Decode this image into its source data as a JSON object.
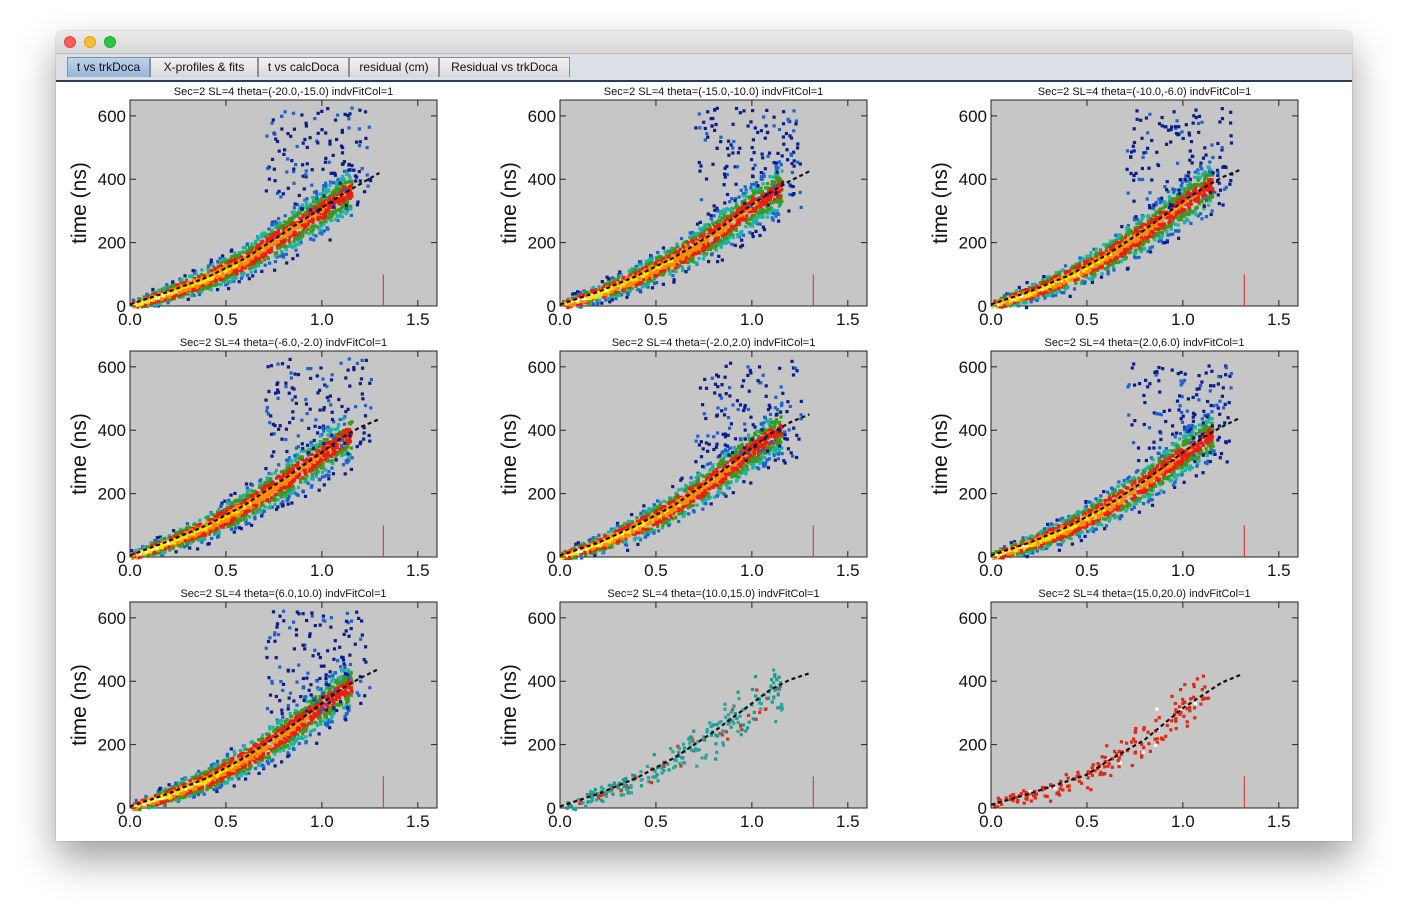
{
  "window": {
    "tabs": [
      {
        "label": "t vs trkDoca",
        "active": true
      },
      {
        "label": "X-profiles & fits",
        "active": false
      },
      {
        "label": "t vs calcDoca",
        "active": false
      },
      {
        "label": "residual (cm)",
        "active": false
      },
      {
        "label": "Residual vs trkDoca",
        "active": false
      }
    ]
  },
  "colors": {
    "plot_bg": "#c6c6c6",
    "fit_line": "#111111",
    "marker": "#e0281c"
  },
  "chart_data": [
    {
      "type": "heatmap",
      "title": "Sec=2 SL=4 theta=(-20.0,-15.0) indvFitCol=1",
      "ylabel": "time (ns)",
      "xlabel": "",
      "xlim": [
        0,
        1.6
      ],
      "ylim": [
        0,
        650
      ],
      "xticks": [
        "0.0",
        "0.5",
        "1.0",
        "1.5"
      ],
      "yticks": [
        "0",
        "200",
        "400",
        "600"
      ],
      "palette": "rainbow",
      "fit_curve": [
        [
          0,
          5
        ],
        [
          0.2,
          45
        ],
        [
          0.4,
          90
        ],
        [
          0.6,
          150
        ],
        [
          0.8,
          230
        ],
        [
          1.0,
          310
        ],
        [
          1.1,
          350
        ],
        [
          1.2,
          385
        ],
        [
          1.3,
          420
        ]
      ],
      "marker_x": 1.32
    },
    {
      "type": "heatmap",
      "title": "Sec=2 SL=4 theta=(-15.0,-10.0) indvFitCol=1",
      "ylabel": "time (ns)",
      "xlabel": "",
      "xlim": [
        0,
        1.6
      ],
      "ylim": [
        0,
        650
      ],
      "xticks": [
        "0.0",
        "0.5",
        "1.0",
        "1.5"
      ],
      "yticks": [
        "0",
        "200",
        "400",
        "600"
      ],
      "palette": "rainbow",
      "fit_curve": [
        [
          0,
          5
        ],
        [
          0.2,
          45
        ],
        [
          0.4,
          95
        ],
        [
          0.6,
          155
        ],
        [
          0.8,
          230
        ],
        [
          1.0,
          320
        ],
        [
          1.1,
          360
        ],
        [
          1.2,
          395
        ],
        [
          1.3,
          425
        ]
      ],
      "marker_x": 1.32
    },
    {
      "type": "heatmap",
      "title": "Sec=2 SL=4 theta=(-10.0,-6.0) indvFitCol=1",
      "ylabel": "time (ns)",
      "xlabel": "",
      "xlim": [
        0,
        1.6
      ],
      "ylim": [
        0,
        650
      ],
      "xticks": [
        "0.0",
        "0.5",
        "1.0",
        "1.5"
      ],
      "yticks": [
        "0",
        "200",
        "400",
        "600"
      ],
      "palette": "rainbow",
      "fit_curve": [
        [
          0,
          5
        ],
        [
          0.2,
          45
        ],
        [
          0.4,
          95
        ],
        [
          0.6,
          160
        ],
        [
          0.8,
          240
        ],
        [
          1.0,
          330
        ],
        [
          1.1,
          370
        ],
        [
          1.2,
          405
        ],
        [
          1.3,
          430
        ]
      ],
      "marker_x": 1.32
    },
    {
      "type": "heatmap",
      "title": "Sec=2 SL=4 theta=(-6.0,-2.0) indvFitCol=1",
      "ylabel": "time (ns)",
      "xlabel": "",
      "xlim": [
        0,
        1.6
      ],
      "ylim": [
        0,
        650
      ],
      "xticks": [
        "0.0",
        "0.5",
        "1.0",
        "1.5"
      ],
      "yticks": [
        "0",
        "200",
        "400",
        "600"
      ],
      "palette": "rainbow",
      "fit_curve": [
        [
          0,
          5
        ],
        [
          0.2,
          50
        ],
        [
          0.4,
          100
        ],
        [
          0.6,
          165
        ],
        [
          0.8,
          245
        ],
        [
          1.0,
          330
        ],
        [
          1.1,
          375
        ],
        [
          1.2,
          410
        ],
        [
          1.3,
          435
        ]
      ],
      "marker_x": 1.32
    },
    {
      "type": "heatmap",
      "title": "Sec=2 SL=4 theta=(-2.0,2.0) indvFitCol=1",
      "ylabel": "time (ns)",
      "xlabel": "",
      "xlim": [
        0,
        1.6
      ],
      "ylim": [
        0,
        650
      ],
      "xticks": [
        "0.0",
        "0.5",
        "1.0",
        "1.5"
      ],
      "yticks": [
        "0",
        "200",
        "400",
        "600"
      ],
      "palette": "rainbow",
      "fit_curve": [
        [
          0,
          5
        ],
        [
          0.2,
          45
        ],
        [
          0.4,
          100
        ],
        [
          0.6,
          165
        ],
        [
          0.8,
          250
        ],
        [
          1.0,
          345
        ],
        [
          1.1,
          390
        ],
        [
          1.2,
          425
        ],
        [
          1.3,
          450
        ]
      ],
      "marker_x": 1.32
    },
    {
      "type": "heatmap",
      "title": "Sec=2 SL=4 theta=(2.0,6.0) indvFitCol=1",
      "ylabel": "time (ns)",
      "xlabel": "",
      "xlim": [
        0,
        1.6
      ],
      "ylim": [
        0,
        650
      ],
      "xticks": [
        "0.0",
        "0.5",
        "1.0",
        "1.5"
      ],
      "yticks": [
        "0",
        "200",
        "400",
        "600"
      ],
      "palette": "rainbow",
      "fit_curve": [
        [
          0,
          5
        ],
        [
          0.2,
          45
        ],
        [
          0.4,
          95
        ],
        [
          0.6,
          160
        ],
        [
          0.8,
          240
        ],
        [
          1.0,
          330
        ],
        [
          1.1,
          375
        ],
        [
          1.2,
          410
        ],
        [
          1.3,
          440
        ]
      ],
      "marker_x": 1.32
    },
    {
      "type": "heatmap",
      "title": "Sec=2 SL=4 theta=(6.0,10.0) indvFitCol=1",
      "ylabel": "time (ns)",
      "xlabel": "",
      "xlim": [
        0,
        1.6
      ],
      "ylim": [
        0,
        650
      ],
      "xticks": [
        "0.0",
        "0.5",
        "1.0",
        "1.5"
      ],
      "yticks": [
        "0",
        "200",
        "400",
        "600"
      ],
      "palette": "rainbow",
      "fit_curve": [
        [
          0,
          5
        ],
        [
          0.2,
          45
        ],
        [
          0.4,
          95
        ],
        [
          0.6,
          160
        ],
        [
          0.8,
          240
        ],
        [
          1.0,
          330
        ],
        [
          1.1,
          375
        ],
        [
          1.2,
          410
        ],
        [
          1.3,
          440
        ]
      ],
      "marker_x": 1.32
    },
    {
      "type": "heatmap",
      "title": "Sec=2 SL=4 theta=(10.0,15.0) indvFitCol=1",
      "ylabel": "time (ns)",
      "xlabel": "",
      "xlim": [
        0,
        1.6
      ],
      "ylim": [
        0,
        650
      ],
      "xticks": [
        "0.0",
        "0.5",
        "1.0",
        "1.5"
      ],
      "yticks": [
        "0",
        "200",
        "400",
        "600"
      ],
      "palette": "sparse",
      "fit_curve": [
        [
          0,
          5
        ],
        [
          0.2,
          45
        ],
        [
          0.4,
          95
        ],
        [
          0.6,
          160
        ],
        [
          0.8,
          240
        ],
        [
          1.0,
          330
        ],
        [
          1.1,
          375
        ],
        [
          1.2,
          405
        ],
        [
          1.3,
          425
        ]
      ],
      "marker_x": 1.32
    },
    {
      "type": "heatmap",
      "title": "Sec=2 SL=4 theta=(15.0,20.0) indvFitCol=1",
      "ylabel": "",
      "xlabel": "",
      "xlim": [
        0,
        1.6
      ],
      "ylim": [
        0,
        650
      ],
      "xticks": [
        "0.0",
        "0.5",
        "1.0",
        "1.5"
      ],
      "yticks": [
        "0",
        "200",
        "400",
        "600"
      ],
      "palette": "red",
      "fit_curve": [
        [
          0,
          10
        ],
        [
          0.2,
          45
        ],
        [
          0.4,
          85
        ],
        [
          0.5,
          105
        ],
        [
          0.6,
          145
        ],
        [
          0.8,
          215
        ],
        [
          1.0,
          315
        ],
        [
          1.1,
          355
        ],
        [
          1.2,
          395
        ],
        [
          1.3,
          420
        ]
      ],
      "marker_x": 1.32
    }
  ]
}
